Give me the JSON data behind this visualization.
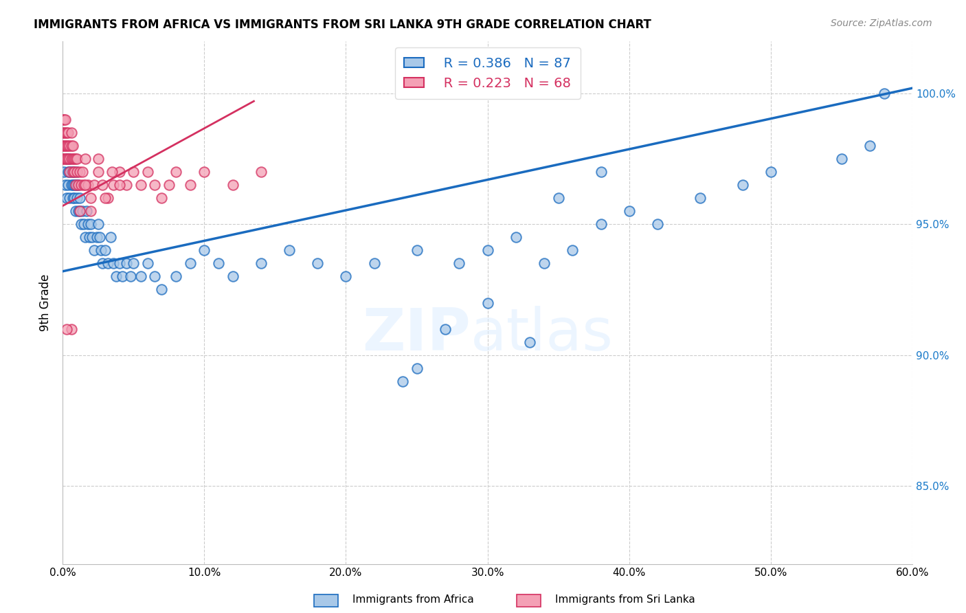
{
  "title": "IMMIGRANTS FROM AFRICA VS IMMIGRANTS FROM SRI LANKA 9TH GRADE CORRELATION CHART",
  "source": "Source: ZipAtlas.com",
  "xlabel_ticks": [
    "0.0%",
    "10.0%",
    "20.0%",
    "30.0%",
    "40.0%",
    "50.0%",
    "60.0%"
  ],
  "xlabel_vals": [
    0.0,
    0.1,
    0.2,
    0.3,
    0.4,
    0.5,
    0.6
  ],
  "ylabel_ticks": [
    "85.0%",
    "90.0%",
    "95.0%",
    "100.0%"
  ],
  "ylabel_vals": [
    0.85,
    0.9,
    0.95,
    1.0
  ],
  "xlim": [
    0.0,
    0.6
  ],
  "ylim": [
    0.82,
    1.02
  ],
  "ylabel": "9th Grade",
  "legend_blue_label": "Immigrants from Africa",
  "legend_pink_label": "Immigrants from Sri Lanka",
  "r_blue": 0.386,
  "n_blue": 87,
  "r_pink": 0.223,
  "n_pink": 68,
  "blue_color": "#a8c8e8",
  "pink_color": "#f4a0b5",
  "blue_line_color": "#1a6bbf",
  "pink_line_color": "#d43060",
  "grid_color": "#cccccc",
  "bg_color": "#ffffff",
  "blue_scatter_x": [
    0.001,
    0.002,
    0.003,
    0.003,
    0.004,
    0.004,
    0.005,
    0.005,
    0.005,
    0.006,
    0.006,
    0.007,
    0.007,
    0.007,
    0.008,
    0.008,
    0.008,
    0.009,
    0.009,
    0.01,
    0.01,
    0.01,
    0.011,
    0.011,
    0.012,
    0.012,
    0.013,
    0.014,
    0.015,
    0.016,
    0.017,
    0.018,
    0.019,
    0.02,
    0.021,
    0.022,
    0.024,
    0.025,
    0.026,
    0.027,
    0.028,
    0.03,
    0.032,
    0.034,
    0.036,
    0.038,
    0.04,
    0.042,
    0.045,
    0.048,
    0.05,
    0.055,
    0.06,
    0.065,
    0.07,
    0.08,
    0.09,
    0.1,
    0.11,
    0.12,
    0.14,
    0.16,
    0.18,
    0.2,
    0.22,
    0.25,
    0.28,
    0.3,
    0.32,
    0.34,
    0.36,
    0.38,
    0.4,
    0.42,
    0.45,
    0.48,
    0.5,
    0.55,
    0.57,
    0.58,
    0.3,
    0.33,
    0.27,
    0.25,
    0.24,
    0.35,
    0.38
  ],
  "blue_scatter_y": [
    0.97,
    0.965,
    0.975,
    0.96,
    0.97,
    0.965,
    0.97,
    0.975,
    0.96,
    0.965,
    0.97,
    0.96,
    0.965,
    0.97,
    0.965,
    0.96,
    0.97,
    0.955,
    0.965,
    0.96,
    0.965,
    0.97,
    0.955,
    0.965,
    0.96,
    0.955,
    0.95,
    0.955,
    0.95,
    0.945,
    0.955,
    0.95,
    0.945,
    0.95,
    0.945,
    0.94,
    0.945,
    0.95,
    0.945,
    0.94,
    0.935,
    0.94,
    0.935,
    0.945,
    0.935,
    0.93,
    0.935,
    0.93,
    0.935,
    0.93,
    0.935,
    0.93,
    0.935,
    0.93,
    0.925,
    0.93,
    0.935,
    0.94,
    0.935,
    0.93,
    0.935,
    0.94,
    0.935,
    0.93,
    0.935,
    0.94,
    0.935,
    0.94,
    0.945,
    0.935,
    0.94,
    0.95,
    0.955,
    0.95,
    0.96,
    0.965,
    0.97,
    0.975,
    0.98,
    1.0,
    0.92,
    0.905,
    0.91,
    0.895,
    0.89,
    0.96,
    0.97
  ],
  "pink_scatter_x": [
    0.0,
    0.0,
    0.0,
    0.0,
    0.001,
    0.001,
    0.001,
    0.001,
    0.002,
    0.002,
    0.002,
    0.002,
    0.003,
    0.003,
    0.003,
    0.004,
    0.004,
    0.004,
    0.005,
    0.005,
    0.005,
    0.006,
    0.006,
    0.006,
    0.007,
    0.007,
    0.007,
    0.008,
    0.008,
    0.009,
    0.009,
    0.01,
    0.01,
    0.011,
    0.012,
    0.013,
    0.014,
    0.015,
    0.016,
    0.018,
    0.02,
    0.022,
    0.025,
    0.028,
    0.032,
    0.036,
    0.04,
    0.045,
    0.05,
    0.055,
    0.06,
    0.065,
    0.07,
    0.075,
    0.08,
    0.09,
    0.1,
    0.12,
    0.14,
    0.016,
    0.025,
    0.035,
    0.04,
    0.03,
    0.02,
    0.012,
    0.006,
    0.003
  ],
  "pink_scatter_y": [
    0.98,
    0.985,
    0.99,
    0.975,
    0.98,
    0.985,
    0.975,
    0.99,
    0.98,
    0.985,
    0.975,
    0.99,
    0.98,
    0.975,
    0.985,
    0.98,
    0.975,
    0.985,
    0.975,
    0.98,
    0.97,
    0.975,
    0.98,
    0.985,
    0.975,
    0.97,
    0.98,
    0.975,
    0.97,
    0.975,
    0.965,
    0.97,
    0.975,
    0.965,
    0.97,
    0.965,
    0.97,
    0.965,
    0.975,
    0.965,
    0.96,
    0.965,
    0.97,
    0.965,
    0.96,
    0.965,
    0.97,
    0.965,
    0.97,
    0.965,
    0.97,
    0.965,
    0.96,
    0.965,
    0.97,
    0.965,
    0.97,
    0.965,
    0.97,
    0.965,
    0.975,
    0.97,
    0.965,
    0.96,
    0.955,
    0.955,
    0.91,
    0.91
  ]
}
